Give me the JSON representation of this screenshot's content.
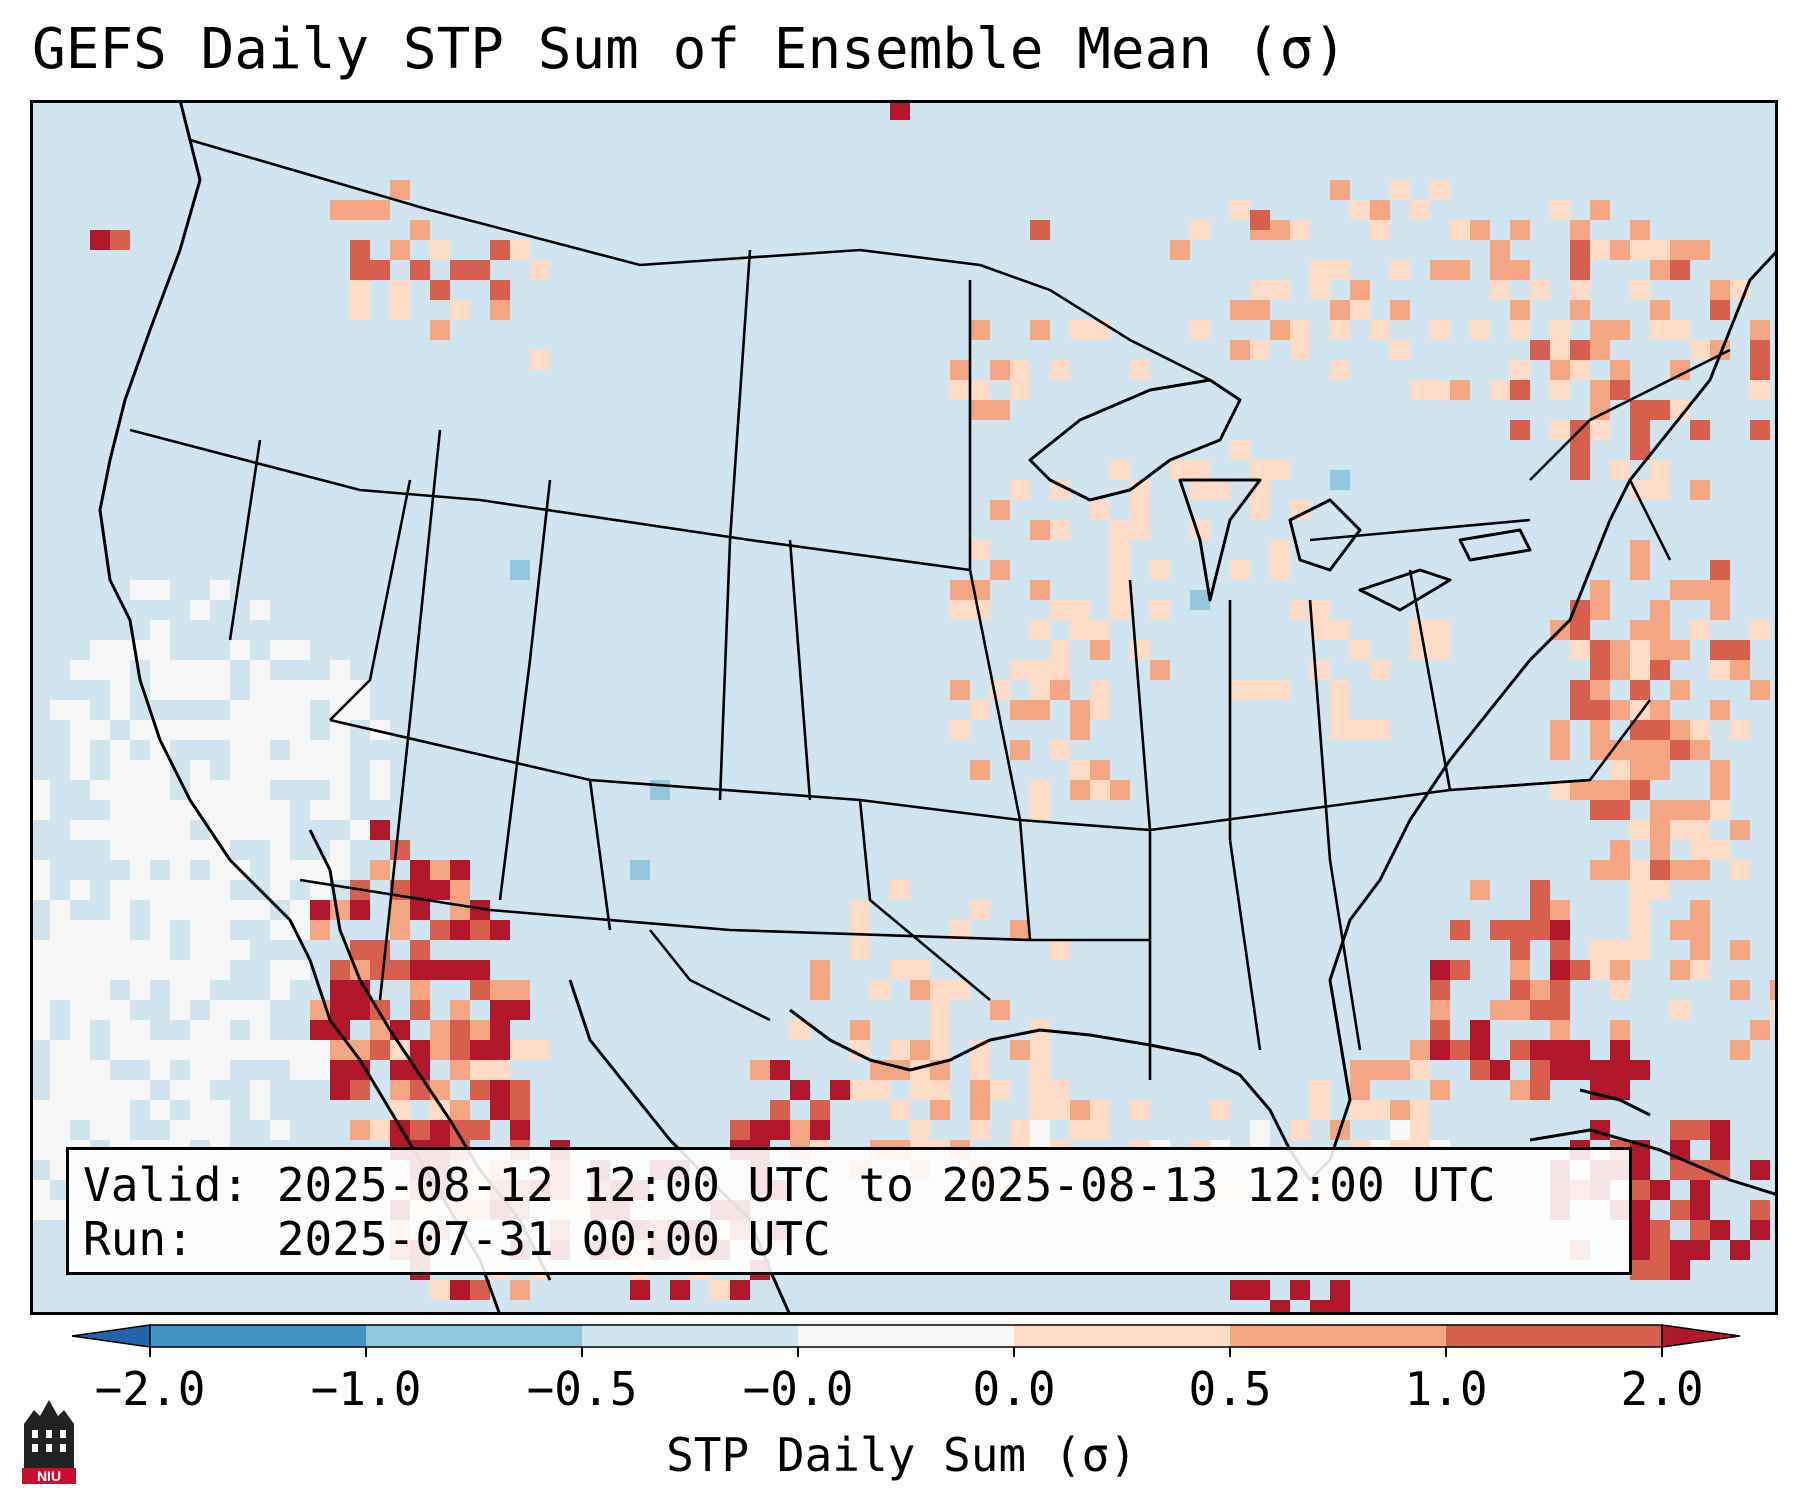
{
  "title": "GEFS Daily STP Sum of Ensemble Mean (σ)",
  "valid_line": "Valid: 2025-08-12 12:00 UTC to 2025-08-13 12:00 UTC",
  "run_line": "Run:   2025-07-31 00:00 UTC",
  "colorbar": {
    "label": "STP Daily Sum (σ)",
    "ticks": [
      "−2.0",
      "−1.0",
      "−0.5",
      "−0.0",
      "0.0",
      "0.5",
      "1.0",
      "2.0"
    ],
    "bins": [
      {
        "range": "< -2.0",
        "color": "#2166ac"
      },
      {
        "range": "-2.0 to -1.0",
        "color": "#4393c3"
      },
      {
        "range": "-1.0 to -0.5",
        "color": "#92c5de"
      },
      {
        "range": "-0.5 to -0.0",
        "color": "#d1e5f0"
      },
      {
        "range": "-0.0 to 0.0",
        "color": "#f7f7f7"
      },
      {
        "range": "0.0 to 0.5",
        "color": "#fddbc7"
      },
      {
        "range": "0.5 to 1.0",
        "color": "#f4a582"
      },
      {
        "range": "1.0 to 2.0",
        "color": "#d6604d"
      },
      {
        "range": "> 2.0",
        "color": "#b2182b"
      }
    ]
  },
  "field": {
    "background_color": "#d1e5f0",
    "regions": [
      {
        "name": "Pacific near-zero band",
        "color": "#f7f7f7",
        "level": "-0.0 to 0.0"
      },
      {
        "name": "Baja/Sonora high STP",
        "color": "#b2182b",
        "level": "> 2.0"
      },
      {
        "name": "Florida east coast",
        "color": "#d6604d",
        "level": "1.0 to 2.0"
      },
      {
        "name": "Mid-Atlantic offshore",
        "color": "#f4a582",
        "level": "0.5 to 1.0"
      },
      {
        "name": "Great Lakes / Northeast",
        "color": "#fddbc7",
        "level": "0.0 to 0.5"
      },
      {
        "name": "Cuba / Bahamas",
        "color": "#b2182b",
        "level": "> 2.0"
      }
    ]
  },
  "logo": {
    "text": "NIU"
  }
}
